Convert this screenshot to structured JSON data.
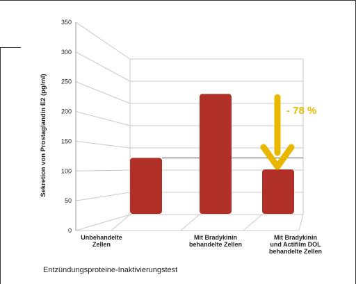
{
  "chart_data": {
    "type": "bar",
    "categories": [
      [
        "Unbehandelte",
        "Zellen"
      ],
      [
        "Mit Bradykinin",
        "behandelte Zellen"
      ],
      [
        "Mit Bradykinin",
        "und Actifilm DOL",
        "behandelte Zellen"
      ]
    ],
    "values": [
      126,
      270,
      100
    ],
    "ylabel": "Sekretion von Prostaglandin E2 (pg/ml)",
    "ylim": [
      0,
      350
    ],
    "yticks": [
      0,
      50,
      100,
      150,
      200,
      250,
      300,
      350
    ],
    "grid": true,
    "bar_color": "#b03028",
    "reference_value": 126,
    "annotation": {
      "text": "- 78 %",
      "color": "#e8b800"
    },
    "footer": "Entzündungsproteine-Inaktivierungstest"
  }
}
